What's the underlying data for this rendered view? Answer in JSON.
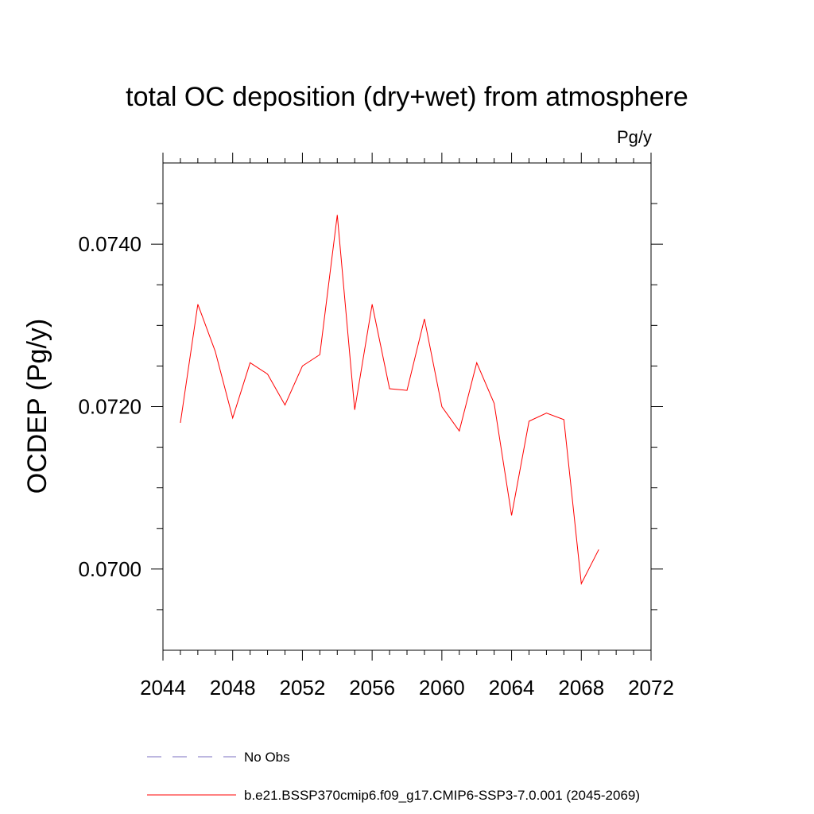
{
  "chart_data": {
    "type": "line",
    "title": "total OC deposition (dry+wet) from atmosphere",
    "units_label": "Pg/y",
    "xlabel": "",
    "ylabel": "OCDEP  (Pg/y)",
    "xlim": [
      2044,
      2072
    ],
    "ylim": [
      0.069,
      0.075
    ],
    "x_major_ticks": [
      2044,
      2048,
      2052,
      2056,
      2060,
      2064,
      2068,
      2072
    ],
    "x_minor_step": 1,
    "y_major_ticks": [
      0.07,
      0.072,
      0.074
    ],
    "y_tick_labels": [
      "0.0700",
      "0.0720",
      "0.0740"
    ],
    "y_minor_step": 0.0005,
    "grid": false,
    "legend_position": "bottom-left",
    "series": [
      {
        "name": "No Obs",
        "style": "dashed",
        "color": "#7b6fc0",
        "x": [],
        "values": []
      },
      {
        "name": "b.e21.BSSP370cmip6.f09_g17.CMIP6-SSP3-7.0.001 (2045-2069)",
        "style": "solid",
        "color": "#ff0000",
        "x": [
          2045,
          2046,
          2047,
          2048,
          2049,
          2050,
          2051,
          2052,
          2053,
          2054,
          2055,
          2056,
          2057,
          2058,
          2059,
          2060,
          2061,
          2062,
          2063,
          2064,
          2065,
          2066,
          2067,
          2068,
          2069
        ],
        "values": [
          0.0718,
          0.07326,
          0.07268,
          0.07186,
          0.07254,
          0.0724,
          0.07202,
          0.0725,
          0.07264,
          0.07436,
          0.07196,
          0.07326,
          0.07222,
          0.0722,
          0.07308,
          0.072,
          0.0717,
          0.07254,
          0.07204,
          0.07066,
          0.07182,
          0.07192,
          0.07184,
          0.06982,
          0.07024
        ]
      }
    ]
  }
}
